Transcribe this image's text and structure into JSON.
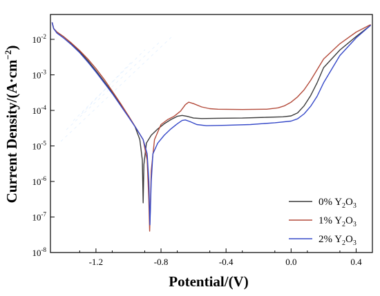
{
  "chart_data": {
    "type": "line",
    "xlabel": "Potential/(V)",
    "ylabel": "Current Density/(A·cm⁻²)",
    "x_scale": "linear",
    "y_scale": "log",
    "xlim": [
      -1.48,
      0.5
    ],
    "ylim": [
      1e-08,
      0.05
    ],
    "x_ticks": [
      -1.2,
      -0.8,
      -0.4,
      0.0,
      0.4
    ],
    "x_tick_labels": [
      "-1.2",
      "-0.8",
      "-0.4",
      "0.0",
      "0.4"
    ],
    "y_ticks": [
      1e-08,
      1e-07,
      1e-06,
      1e-05,
      0.0001,
      0.001,
      0.01
    ],
    "y_tick_labels": [
      {
        "base": "10",
        "exp": "-8"
      },
      {
        "base": "10",
        "exp": "-7"
      },
      {
        "base": "10",
        "exp": "-6"
      },
      {
        "base": "10",
        "exp": "-5"
      },
      {
        "base": "10",
        "exp": "-4"
      },
      {
        "base": "10",
        "exp": "-3"
      },
      {
        "base": "10",
        "exp": "-2"
      }
    ],
    "grid": false,
    "legend_position": "bottom-right",
    "series": [
      {
        "name": "0% Y2O3",
        "legend_label": {
          "pre": "0% Y",
          "sub1": "2",
          "mid": "O",
          "sub2": "3"
        },
        "color": "#3a3a3a",
        "x": [
          -1.47,
          -1.46,
          -1.44,
          -1.4,
          -1.35,
          -1.3,
          -1.25,
          -1.2,
          -1.15,
          -1.1,
          -1.05,
          -1.0,
          -0.96,
          -0.93,
          -0.915,
          -0.91,
          -0.905,
          -0.89,
          -0.86,
          -0.82,
          -0.78,
          -0.74,
          -0.7,
          -0.67,
          -0.64,
          -0.6,
          -0.55,
          -0.45,
          -0.3,
          -0.15,
          -0.05,
          0.0,
          0.04,
          0.08,
          0.12,
          0.16,
          0.2,
          0.3,
          0.4,
          0.49
        ],
        "y": [
          0.03,
          0.02,
          0.016,
          0.012,
          0.0075,
          0.0045,
          0.0025,
          0.0013,
          0.00065,
          0.00032,
          0.00015,
          7e-05,
          3.5e-05,
          1.5e-05,
          4e-06,
          2.5e-07,
          3e-06,
          1.2e-05,
          2e-05,
          3e-05,
          4.2e-05,
          5.5e-05,
          6.8e-05,
          7.2e-05,
          6.8e-05,
          6.1e-05,
          5.9e-05,
          6e-05,
          6.1e-05,
          6.4e-05,
          6.6e-05,
          7e-05,
          8.5e-05,
          0.000135,
          0.00026,
          0.0006,
          0.0016,
          0.005,
          0.012,
          0.025
        ]
      },
      {
        "name": "1% Y2O3",
        "legend_label": {
          "pre": "1% Y",
          "sub1": "2",
          "mid": "O",
          "sub2": "3"
        },
        "color": "#b34a3a",
        "x": [
          -1.47,
          -1.46,
          -1.44,
          -1.4,
          -1.35,
          -1.3,
          -1.25,
          -1.2,
          -1.15,
          -1.1,
          -1.05,
          -1.0,
          -0.95,
          -0.91,
          -0.885,
          -0.875,
          -0.87,
          -0.865,
          -0.86,
          -0.84,
          -0.8,
          -0.76,
          -0.72,
          -0.68,
          -0.65,
          -0.63,
          -0.6,
          -0.55,
          -0.5,
          -0.45,
          -0.3,
          -0.15,
          -0.08,
          -0.04,
          0.0,
          0.04,
          0.08,
          0.12,
          0.16,
          0.2,
          0.3,
          0.4,
          0.49
        ],
        "y": [
          0.03,
          0.02,
          0.016,
          0.012,
          0.0078,
          0.0048,
          0.0028,
          0.0015,
          0.00075,
          0.00035,
          0.00016,
          7e-05,
          3e-05,
          1.5e-05,
          4e-06,
          3e-07,
          4e-08,
          2e-07,
          2e-06,
          1.5e-05,
          4e-05,
          5.5e-05,
          6.8e-05,
          9.5e-05,
          0.000145,
          0.00017,
          0.000155,
          0.000125,
          0.000112,
          0.000108,
          0.000106,
          0.000108,
          0.000118,
          0.000135,
          0.00017,
          0.00024,
          0.00038,
          0.0007,
          0.0014,
          0.0028,
          0.0075,
          0.016,
          0.026
        ]
      },
      {
        "name": "2% Y2O3",
        "legend_label": {
          "pre": "2% Y",
          "sub1": "2",
          "mid": "O",
          "sub2": "3"
        },
        "color": "#3548c8",
        "x": [
          -1.47,
          -1.46,
          -1.44,
          -1.4,
          -1.35,
          -1.3,
          -1.25,
          -1.2,
          -1.15,
          -1.1,
          -1.05,
          -1.0,
          -0.95,
          -0.91,
          -0.885,
          -0.875,
          -0.868,
          -0.86,
          -0.85,
          -0.82,
          -0.78,
          -0.74,
          -0.7,
          -0.67,
          -0.65,
          -0.62,
          -0.58,
          -0.52,
          -0.4,
          -0.25,
          -0.1,
          0.0,
          0.04,
          0.08,
          0.12,
          0.16,
          0.2,
          0.3,
          0.4,
          0.49
        ],
        "y": [
          0.03,
          0.02,
          0.015,
          0.011,
          0.007,
          0.0042,
          0.0023,
          0.0012,
          0.0006,
          0.0003,
          0.00014,
          6.5e-05,
          3e-05,
          1.5e-05,
          6e-06,
          1e-06,
          6e-08,
          1e-06,
          6e-06,
          1.2e-05,
          2e-05,
          3e-05,
          4.2e-05,
          5.2e-05,
          5.4e-05,
          4.8e-05,
          4e-05,
          3.7e-05,
          3.8e-05,
          4e-05,
          4.5e-05,
          5e-05,
          5.8e-05,
          8e-05,
          0.00013,
          0.00025,
          0.0006,
          0.0035,
          0.011,
          0.025
        ]
      }
    ]
  }
}
